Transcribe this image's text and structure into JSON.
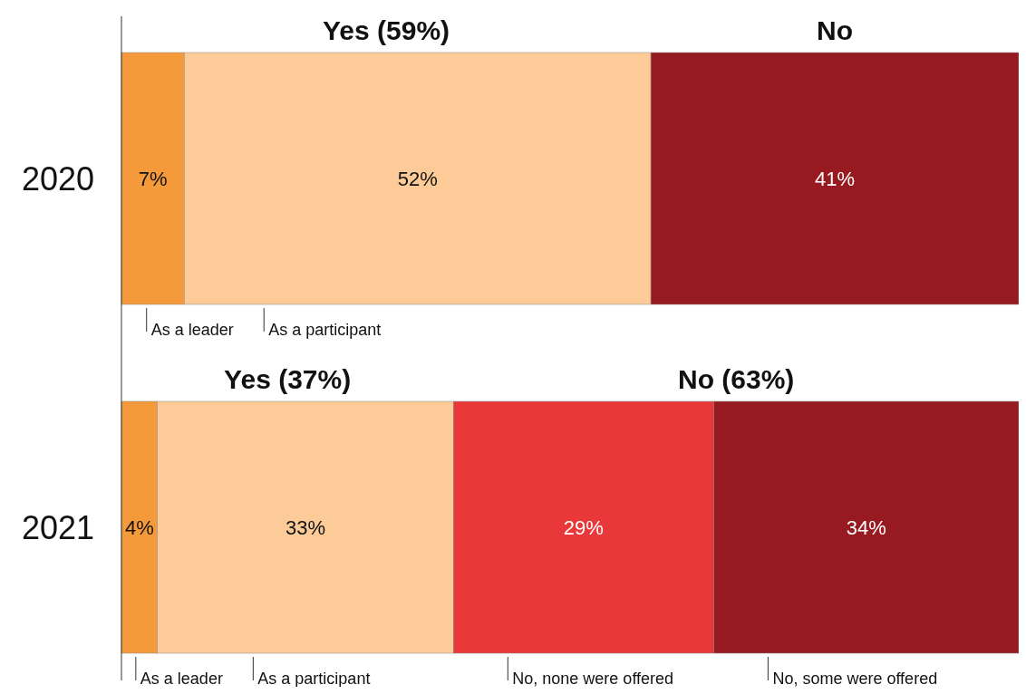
{
  "chart_data": {
    "type": "bar",
    "orientation": "horizontal",
    "stacked": true,
    "categories": [
      "2020",
      "2021"
    ],
    "series": [
      {
        "name": "As a leader",
        "color": "#f59a3a",
        "values": [
          7,
          4
        ],
        "value_labels": [
          "7%",
          "4%"
        ]
      },
      {
        "name": "As a participant",
        "color": "#fccb98",
        "values": [
          52,
          33
        ],
        "value_labels": [
          "52%",
          "33%"
        ]
      },
      {
        "name": "No, none were offered",
        "color": "#e8383a",
        "values": [
          null,
          29
        ],
        "value_labels": [
          null,
          "29%"
        ]
      },
      {
        "name": "No, some were offered",
        "color": "#961a1f",
        "values": [
          null,
          34
        ],
        "value_labels": [
          null,
          "34%"
        ]
      },
      {
        "color": "#961a1f",
        "values": [
          41,
          null
        ],
        "value_labels": [
          "41%",
          null
        ]
      }
    ],
    "annotations": [
      "Yes (59%)",
      "No",
      "Yes (37%)",
      "No (63%)"
    ]
  }
}
